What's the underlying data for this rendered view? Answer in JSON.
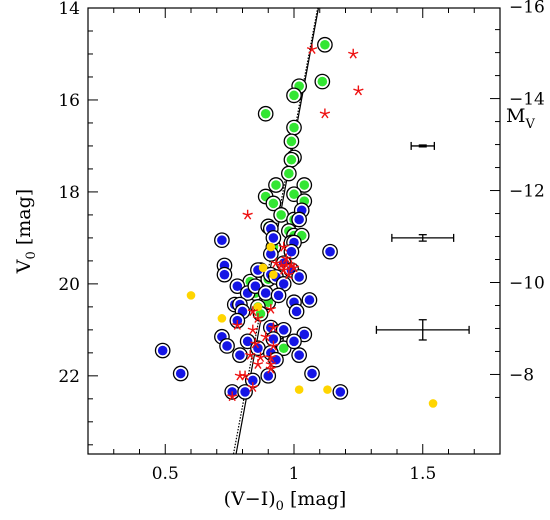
{
  "chart_data": {
    "type": "scatter",
    "x_axis": {
      "label": "(V−I)",
      "subscript": "0",
      "unit": "[mag]",
      "range": [
        0.2,
        1.8
      ],
      "ticks": [
        "0.5",
        "1",
        "1.5"
      ],
      "tick_values": [
        0.5,
        1.0,
        1.5
      ]
    },
    "y_axis_left": {
      "label": "V",
      "subscript": "0",
      "unit": "[mag]",
      "range": [
        23.7,
        14.0
      ],
      "inverted": true,
      "ticks": [
        "14",
        "16",
        "18",
        "20",
        "22"
      ],
      "tick_values": [
        14,
        16,
        18,
        20,
        22
      ]
    },
    "y_axis_right": {
      "label": "M",
      "subscript": "V",
      "offset": -29.97,
      "ticks": [
        "−16",
        "−14",
        "−12",
        "−10",
        "−8"
      ],
      "tick_values": [
        -16,
        -14,
        -12,
        -10,
        -8
      ]
    },
    "colors": {
      "blue": "#1515e6",
      "green": "#33e633",
      "yellow": "#ffd500",
      "red": "#ee1111",
      "ring": "#000000"
    },
    "series": [
      {
        "marker": "filled-circle-ring",
        "color": "green",
        "points": [
          [
            1.12,
            14.8
          ],
          [
            1.11,
            15.6
          ],
          [
            1.02,
            15.7
          ],
          [
            1.0,
            15.9
          ],
          [
            0.89,
            16.3
          ],
          [
            1.0,
            16.6
          ],
          [
            0.99,
            16.9
          ],
          [
            1.0,
            17.25
          ],
          [
            0.99,
            17.3
          ],
          [
            0.98,
            17.6
          ],
          [
            0.93,
            17.85
          ],
          [
            1.04,
            17.85
          ],
          [
            1.0,
            18.05
          ],
          [
            0.89,
            18.1
          ],
          [
            0.92,
            18.25
          ],
          [
            1.04,
            18.2
          ],
          [
            0.95,
            18.5
          ],
          [
            1.0,
            18.6
          ],
          [
            0.9,
            18.75
          ],
          [
            0.98,
            18.85
          ],
          [
            1.0,
            18.95
          ],
          [
            1.03,
            18.95
          ],
          [
            0.92,
            19.2
          ],
          [
            0.99,
            19.1
          ],
          [
            0.87,
            19.7
          ],
          [
            0.9,
            19.9
          ],
          [
            0.83,
            19.95
          ],
          [
            0.85,
            20.2
          ],
          [
            0.9,
            20.4
          ],
          [
            0.86,
            20.5
          ],
          [
            0.87,
            20.65
          ],
          [
            0.93,
            21.2
          ],
          [
            0.96,
            21.4
          ]
        ]
      },
      {
        "marker": "filled-circle-ring",
        "color": "blue",
        "points": [
          [
            1.03,
            18.4
          ],
          [
            1.02,
            18.6
          ],
          [
            0.91,
            18.8
          ],
          [
            0.92,
            19.0
          ],
          [
            1.0,
            19.1
          ],
          [
            0.99,
            19.3
          ],
          [
            0.91,
            19.35
          ],
          [
            0.96,
            19.55
          ],
          [
            1.14,
            19.3
          ],
          [
            0.72,
            19.05
          ],
          [
            0.73,
            19.6
          ],
          [
            0.73,
            19.8
          ],
          [
            0.86,
            19.7
          ],
          [
            0.91,
            19.8
          ],
          [
            0.93,
            19.85
          ],
          [
            0.99,
            19.7
          ],
          [
            1.02,
            19.85
          ],
          [
            0.96,
            20.0
          ],
          [
            0.78,
            20.05
          ],
          [
            0.82,
            20.2
          ],
          [
            0.85,
            20.05
          ],
          [
            0.89,
            20.2
          ],
          [
            0.94,
            20.25
          ],
          [
            1.06,
            20.35
          ],
          [
            0.77,
            20.45
          ],
          [
            0.79,
            20.45
          ],
          [
            0.8,
            20.6
          ],
          [
            0.78,
            20.8
          ],
          [
            1.0,
            20.4
          ],
          [
            1.01,
            20.6
          ],
          [
            0.91,
            20.95
          ],
          [
            0.94,
            21.05
          ],
          [
            0.96,
            21.0
          ],
          [
            1.04,
            21.1
          ],
          [
            0.92,
            21.2
          ],
          [
            1.0,
            21.25
          ],
          [
            0.82,
            21.25
          ],
          [
            0.72,
            21.15
          ],
          [
            0.74,
            21.35
          ],
          [
            0.86,
            21.4
          ],
          [
            0.91,
            21.5
          ],
          [
            1.02,
            21.55
          ],
          [
            0.79,
            21.55
          ],
          [
            0.93,
            21.65
          ],
          [
            0.49,
            21.45
          ],
          [
            0.56,
            21.95
          ],
          [
            1.07,
            21.95
          ],
          [
            0.9,
            22.0
          ],
          [
            0.84,
            22.1
          ],
          [
            0.76,
            22.35
          ],
          [
            0.81,
            22.35
          ],
          [
            1.18,
            22.35
          ]
        ]
      },
      {
        "marker": "filled-circle",
        "color": "yellow",
        "points": [
          [
            0.6,
            20.25
          ],
          [
            0.72,
            20.75
          ],
          [
            0.91,
            19.2
          ],
          [
            0.88,
            19.65
          ],
          [
            0.92,
            19.8
          ],
          [
            0.86,
            20.5
          ],
          [
            1.02,
            22.3
          ],
          [
            1.13,
            22.3
          ],
          [
            1.54,
            22.6
          ]
        ]
      },
      {
        "marker": "star",
        "color": "red",
        "points": [
          [
            1.07,
            14.9
          ],
          [
            1.23,
            15.0
          ],
          [
            1.25,
            15.8
          ],
          [
            1.12,
            16.3
          ],
          [
            0.82,
            18.5
          ],
          [
            0.96,
            19.2
          ],
          [
            0.97,
            19.45
          ],
          [
            0.93,
            19.55
          ],
          [
            0.95,
            19.6
          ],
          [
            0.97,
            19.6
          ],
          [
            0.99,
            19.6
          ],
          [
            1.0,
            19.65
          ],
          [
            0.96,
            19.7
          ],
          [
            0.98,
            19.8
          ],
          [
            0.91,
            20.55
          ],
          [
            0.84,
            20.6
          ],
          [
            0.86,
            20.75
          ],
          [
            0.84,
            21.0
          ],
          [
            0.92,
            20.95
          ],
          [
            0.89,
            21.15
          ],
          [
            0.78,
            20.9
          ],
          [
            0.85,
            21.3
          ],
          [
            0.92,
            21.35
          ],
          [
            0.83,
            21.55
          ],
          [
            0.87,
            21.6
          ],
          [
            0.91,
            21.6
          ],
          [
            0.91,
            21.75
          ],
          [
            0.86,
            21.75
          ],
          [
            0.91,
            21.85
          ],
          [
            0.79,
            22.0
          ],
          [
            0.81,
            22.0
          ],
          [
            0.84,
            22.25
          ],
          [
            0.76,
            22.45
          ]
        ]
      }
    ],
    "fit_lines": [
      {
        "style": "solid",
        "points": [
          [
            0.775,
            23.7
          ],
          [
            1.095,
            14.0
          ]
        ]
      },
      {
        "style": "dotted",
        "points": [
          [
            0.765,
            23.7
          ],
          [
            1.092,
            14.0
          ]
        ]
      }
    ],
    "error_bars": [
      {
        "x": 1.5,
        "y": 17.0,
        "xerr": 0.045,
        "yerr": 0.02
      },
      {
        "x": 1.5,
        "y": 19.0,
        "xerr": 0.12,
        "yerr": 0.07
      },
      {
        "x": 1.5,
        "y": 21.0,
        "xerr": 0.18,
        "yerr": 0.22
      }
    ]
  }
}
